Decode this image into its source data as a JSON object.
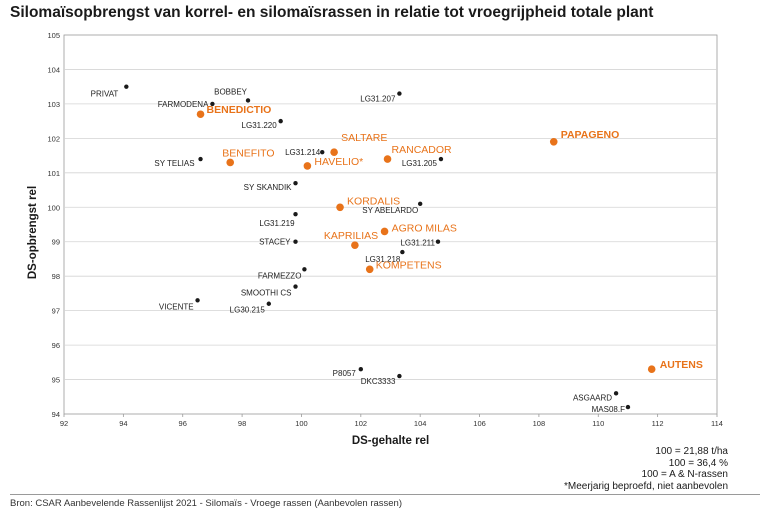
{
  "chart_data": {
    "type": "scatter",
    "title": "Silomaïsopbrengst van korrel- en silomaïsrassen in relatie tot vroegrijpheid totale plant",
    "xlabel": "DS-gehalte rel",
    "ylabel": "DS-opbrengst rel",
    "xlim": [
      92,
      114
    ],
    "ylim": [
      94,
      105
    ],
    "xticks": [
      "92",
      "94",
      "96",
      "98",
      "100",
      "102",
      "104",
      "106",
      "108",
      "110",
      "112",
      "114"
    ],
    "yticks": [
      "94",
      "95",
      "96",
      "97",
      "98",
      "99",
      "100",
      "101",
      "102",
      "103",
      "104",
      "105"
    ],
    "grid": "horizontal",
    "series": [
      {
        "color": "#1a1a1a",
        "points": [
          {
            "label": "PRIVAT",
            "x": 94.1,
            "y": 103.5
          },
          {
            "label": "BOBBEY",
            "x": 98.2,
            "y": 103.1
          },
          {
            "label": "FARMODENA",
            "x": 97.0,
            "y": 103.0
          },
          {
            "label": "LG31.207",
            "x": 103.3,
            "y": 103.3
          },
          {
            "label": "LG31.220",
            "x": 99.3,
            "y": 102.5
          },
          {
            "label": "LG31.214",
            "x": 100.7,
            "y": 101.6
          },
          {
            "label": "SY TELIAS",
            "x": 96.6,
            "y": 101.4
          },
          {
            "label": "LG31.205",
            "x": 104.7,
            "y": 101.4
          },
          {
            "label": "SY SKANDIK",
            "x": 99.8,
            "y": 100.7
          },
          {
            "label": "SY ABELARDO",
            "x": 104.0,
            "y": 100.1
          },
          {
            "label": "LG31.219",
            "x": 99.8,
            "y": 99.8
          },
          {
            "label": "LG31.211",
            "x": 104.6,
            "y": 99.0
          },
          {
            "label": "STACEY",
            "x": 99.8,
            "y": 99.0
          },
          {
            "label": "LG31.218",
            "x": 103.4,
            "y": 98.7
          },
          {
            "label": "FARMEZZO",
            "x": 100.1,
            "y": 98.2
          },
          {
            "label": "SMOOTHI CS",
            "x": 99.8,
            "y": 97.7
          },
          {
            "label": "VICENTE",
            "x": 96.5,
            "y": 97.3
          },
          {
            "label": "LG30.215",
            "x": 98.9,
            "y": 97.2
          },
          {
            "label": "P8057",
            "x": 102.0,
            "y": 95.3
          },
          {
            "label": "DKC3333",
            "x": 103.3,
            "y": 95.1
          },
          {
            "label": "ASGAARD",
            "x": 110.6,
            "y": 94.6
          },
          {
            "label": "MAS08.F",
            "x": 111.0,
            "y": 94.2
          }
        ]
      },
      {
        "color": "#e8731a",
        "points": [
          {
            "label": "BENEDICTIO",
            "x": 96.6,
            "y": 102.7
          },
          {
            "label": "PAPAGENO",
            "x": 108.5,
            "y": 101.9
          },
          {
            "label": "SALTARE",
            "x": 101.1,
            "y": 101.6
          },
          {
            "label": "RANCADOR",
            "x": 102.9,
            "y": 101.4
          },
          {
            "label": "BENEFITO",
            "x": 97.6,
            "y": 101.3
          },
          {
            "label": "HAVELIO*",
            "x": 100.2,
            "y": 101.2
          },
          {
            "label": "KORDALIS",
            "x": 101.3,
            "y": 100.0
          },
          {
            "label": "AGRO MILAS",
            "x": 102.8,
            "y": 99.3
          },
          {
            "label": "KAPRILIAS",
            "x": 101.8,
            "y": 98.9
          },
          {
            "label": "KOMPETENS",
            "x": 102.3,
            "y": 98.2
          },
          {
            "label": "AUTENS",
            "x": 111.8,
            "y": 95.3
          }
        ]
      }
    ]
  },
  "notes": [
    "100 = 21,88 t/ha",
    "100 = 36,4 %",
    "100 = A & N-rassen",
    "*Meerjarig beproefd, niet aanbevolen"
  ],
  "source": "Bron: CSAR Aanbevelende Rassenlijst 2021 - Silomaïs - Vroege rassen (Aanbevolen rassen)"
}
